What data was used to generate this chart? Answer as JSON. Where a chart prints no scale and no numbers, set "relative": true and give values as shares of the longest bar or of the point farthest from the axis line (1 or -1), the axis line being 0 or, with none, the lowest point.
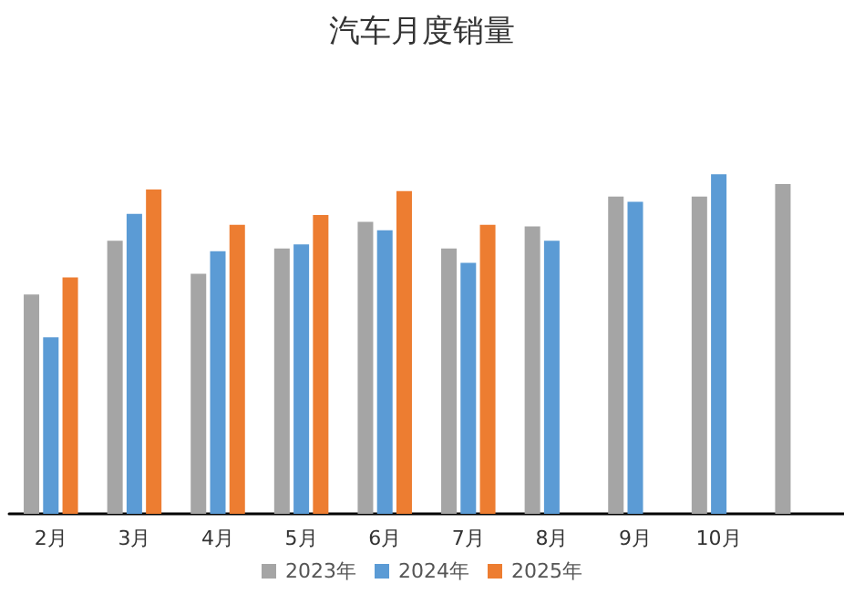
{
  "chart_data": {
    "type": "bar",
    "title": "汽车月度销量",
    "relative": true,
    "categories": [
      "2月",
      "3月",
      "4月",
      "5月",
      "6月",
      "7月",
      "8月",
      "9月",
      "10月",
      null
    ],
    "series": [
      {
        "name": "2023年",
        "color": "#a5a5a5",
        "values": [
          0.646,
          0.804,
          0.707,
          0.781,
          0.86,
          0.781,
          0.846,
          0.934,
          0.934,
          0.971
        ]
      },
      {
        "name": "2024年",
        "color": "#5b9bd5",
        "values": [
          0.52,
          0.883,
          0.773,
          0.793,
          0.835,
          0.739,
          0.804,
          0.919,
          1,
          null
        ]
      },
      {
        "name": "2025年",
        "color": "#ed7d31",
        "values": [
          0.696,
          0.955,
          0.851,
          0.88,
          0.95,
          0.851,
          null,
          null,
          null,
          null
        ]
      }
    ],
    "legend": "bottom"
  }
}
